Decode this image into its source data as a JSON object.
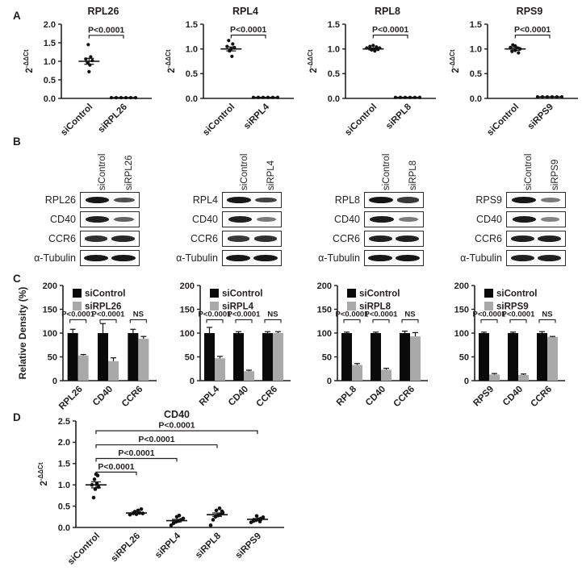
{
  "panels": {
    "a": "A",
    "b": "B",
    "c": "C",
    "d": "D"
  },
  "colors": {
    "black": "#0a0a0a",
    "gray": "#a9a9a9",
    "text": "#231f20"
  },
  "chart_data": [
    {
      "panel": "A",
      "type": "scatter",
      "title": "RPL26",
      "ylabel_base": "2",
      "ylabel_sup": "-ΔΔCt",
      "ylim": [
        0,
        2.0
      ],
      "yticks": [
        "0.0",
        "0.5",
        "1.0",
        "1.5",
        "2.0"
      ],
      "groups": [
        {
          "label": "siControl",
          "mean": 1.0,
          "sem": 0.08,
          "points": [
            [
              -1,
              1.45
            ],
            [
              2,
              1.12
            ],
            [
              -4,
              1.06
            ],
            [
              4,
              1.02
            ],
            [
              -2,
              0.97
            ],
            [
              1,
              0.9
            ],
            [
              0,
              0.72
            ]
          ]
        },
        {
          "label": "siRPL26",
          "mean": 0.02,
          "sem": 0,
          "points": [
            [
              -15,
              0.02
            ],
            [
              -9,
              0.02
            ],
            [
              -3,
              0.02
            ],
            [
              3,
              0.02
            ],
            [
              9,
              0.02
            ],
            [
              15,
              0.02
            ]
          ]
        }
      ],
      "brackets": [
        {
          "from": 0,
          "to": 1,
          "y": 1.7,
          "label": "P<0.0001"
        }
      ]
    },
    {
      "panel": "A",
      "type": "scatter",
      "title": "RPL4",
      "ylabel_base": "2",
      "ylabel_sup": "-ΔΔCt",
      "ylim": [
        0,
        1.5
      ],
      "yticks": [
        "0.0",
        "0.5",
        "1.0",
        "1.5"
      ],
      "groups": [
        {
          "label": "siControl",
          "mean": 1.0,
          "sem": 0.04,
          "points": [
            [
              -3,
              1.17
            ],
            [
              2,
              1.1
            ],
            [
              -5,
              1.05
            ],
            [
              4,
              1.03
            ],
            [
              0,
              1.0
            ],
            [
              -2,
              0.96
            ],
            [
              1,
              0.85
            ]
          ]
        },
        {
          "label": "siRPL4",
          "mean": 0.02,
          "sem": 0,
          "points": [
            [
              -15,
              0.02
            ],
            [
              -9,
              0.02
            ],
            [
              -3,
              0.02
            ],
            [
              3,
              0.02
            ],
            [
              9,
              0.02
            ],
            [
              15,
              0.02
            ]
          ]
        }
      ],
      "brackets": [
        {
          "from": 0,
          "to": 1,
          "y": 1.28,
          "label": "P<0.0001"
        }
      ]
    },
    {
      "panel": "A",
      "type": "scatter",
      "title": "RPL8",
      "ylabel_base": "2",
      "ylabel_sup": "-ΔΔCt",
      "ylim": [
        0,
        1.5
      ],
      "yticks": [
        "0.0",
        "0.5",
        "1.0",
        "1.5"
      ],
      "groups": [
        {
          "label": "siControl",
          "mean": 1.0,
          "sem": 0.02,
          "points": [
            [
              -8,
              1.02
            ],
            [
              -4,
              1.05
            ],
            [
              0,
              1.07
            ],
            [
              4,
              1.04
            ],
            [
              8,
              1.02
            ],
            [
              -2,
              0.98
            ],
            [
              2,
              0.96
            ],
            [
              6,
              0.99
            ]
          ]
        },
        {
          "label": "siRPL8",
          "mean": 0.02,
          "sem": 0,
          "points": [
            [
              -15,
              0.02
            ],
            [
              -9,
              0.02
            ],
            [
              -3,
              0.02
            ],
            [
              3,
              0.02
            ],
            [
              9,
              0.02
            ],
            [
              15,
              0.02
            ]
          ]
        }
      ],
      "brackets": [
        {
          "from": 0,
          "to": 1,
          "y": 1.28,
          "label": "P<0.0001"
        }
      ]
    },
    {
      "panel": "A",
      "type": "scatter",
      "title": "RPS9",
      "ylabel_base": "2",
      "ylabel_sup": "-ΔΔCt",
      "ylim": [
        0,
        1.5
      ],
      "yticks": [
        "0.0",
        "0.5",
        "1.0",
        "1.5"
      ],
      "groups": [
        {
          "label": "siControl",
          "mean": 1.0,
          "sem": 0.03,
          "points": [
            [
              -6,
              1.03
            ],
            [
              -3,
              1.08
            ],
            [
              0,
              1.06
            ],
            [
              3,
              1.02
            ],
            [
              6,
              1.0
            ],
            [
              -4,
              0.95
            ],
            [
              0,
              0.97
            ],
            [
              4,
              0.92
            ]
          ]
        },
        {
          "label": "siRPS9",
          "mean": 0.03,
          "sem": 0,
          "points": [
            [
              -15,
              0.03
            ],
            [
              -9,
              0.03
            ],
            [
              -3,
              0.03
            ],
            [
              3,
              0.03
            ],
            [
              9,
              0.03
            ],
            [
              15,
              0.03
            ]
          ]
        }
      ],
      "brackets": [
        {
          "from": 0,
          "to": 1,
          "y": 1.28,
          "label": "P<0.0001"
        }
      ]
    },
    {
      "panel": "C",
      "type": "bar",
      "ylabel": "Relative Density (%)",
      "ylim": [
        0,
        200
      ],
      "yticks": [
        0,
        50,
        100,
        150,
        200
      ],
      "categories": [
        "RPL26",
        "CD40",
        "CCR6"
      ],
      "series": [
        {
          "name": "siControl",
          "color": "#0a0a0a",
          "values": [
            100,
            100,
            100
          ],
          "errors": [
            8,
            20,
            8
          ]
        },
        {
          "name": "siRPL26",
          "color": "#a9a9a9",
          "values": [
            53,
            41,
            88
          ],
          "errors": [
            2,
            7,
            5
          ]
        }
      ],
      "annotations": [
        "P<0.0001",
        "P<0.0001",
        "NS"
      ]
    },
    {
      "panel": "C",
      "type": "bar",
      "ylabel": "",
      "ylim": [
        0,
        200
      ],
      "yticks": [
        0,
        50,
        100,
        150,
        200
      ],
      "categories": [
        "RPL4",
        "CD40",
        "CCR6"
      ],
      "series": [
        {
          "name": "siControl",
          "color": "#0a0a0a",
          "values": [
            100,
            100,
            100
          ],
          "errors": [
            12,
            3,
            3
          ]
        },
        {
          "name": "siRPL4",
          "color": "#a9a9a9",
          "values": [
            47,
            20,
            100
          ],
          "errors": [
            4,
            2,
            3
          ]
        }
      ],
      "annotations": [
        "P<0.0001",
        "P<0.0001",
        "NS"
      ]
    },
    {
      "panel": "C",
      "type": "bar",
      "ylabel": "",
      "ylim": [
        0,
        200
      ],
      "yticks": [
        0,
        50,
        100,
        150,
        200
      ],
      "categories": [
        "RPL8",
        "CD40",
        "CCR6"
      ],
      "series": [
        {
          "name": "siControl",
          "color": "#0a0a0a",
          "values": [
            100,
            100,
            100
          ],
          "errors": [
            2,
            2,
            4
          ]
        },
        {
          "name": "siRPL8",
          "color": "#a9a9a9",
          "values": [
            33,
            23,
            93
          ],
          "errors": [
            3,
            3,
            8
          ]
        }
      ],
      "annotations": [
        "P<0.0001",
        "P<0.0001",
        "NS"
      ]
    },
    {
      "panel": "C",
      "type": "bar",
      "ylabel": "",
      "ylim": [
        0,
        200
      ],
      "yticks": [
        0,
        50,
        100,
        150,
        200
      ],
      "categories": [
        "RPS9",
        "CD40",
        "CCR6"
      ],
      "series": [
        {
          "name": "siControl",
          "color": "#0a0a0a",
          "values": [
            100,
            100,
            100
          ],
          "errors": [
            2,
            2,
            3
          ]
        },
        {
          "name": "siRPS9",
          "color": "#a9a9a9",
          "values": [
            13,
            12,
            92
          ],
          "errors": [
            2,
            2,
            1
          ]
        }
      ],
      "annotations": [
        "P<0.0001",
        "P<0.0001",
        "NS"
      ]
    },
    {
      "panel": "D",
      "type": "scatter",
      "title": "CD40",
      "ylabel_base": "2",
      "ylabel_sup": "-ΔΔCt",
      "ylim": [
        0,
        2.5
      ],
      "yticks": [
        "0.0",
        "0.5",
        "1.0",
        "1.5",
        "2.0",
        "2.5"
      ],
      "groups": [
        {
          "label": "siControl",
          "mean": 1.0,
          "sem": 0.07,
          "points": [
            [
              -3,
              0.7
            ],
            [
              -1,
              0.9
            ],
            [
              3,
              0.95
            ],
            [
              -5,
              1.0
            ],
            [
              1,
              1.03
            ],
            [
              -2,
              1.13
            ],
            [
              2,
              1.22
            ],
            [
              0,
              1.25
            ]
          ]
        },
        {
          "label": "siRPL26",
          "mean": 0.34,
          "sem": 0.02,
          "points": [
            [
              -8,
              0.3
            ],
            [
              -4,
              0.33
            ],
            [
              0,
              0.31
            ],
            [
              4,
              0.34
            ],
            [
              8,
              0.33
            ],
            [
              -2,
              0.37
            ],
            [
              2,
              0.4
            ],
            [
              6,
              0.43
            ]
          ]
        },
        {
          "label": "siRPL4",
          "mean": 0.16,
          "sem": 0.03,
          "points": [
            [
              -7,
              0.05
            ],
            [
              -4,
              0.1
            ],
            [
              -1,
              0.13
            ],
            [
              2,
              0.15
            ],
            [
              5,
              0.18
            ],
            [
              8,
              0.21
            ],
            [
              0,
              0.25
            ],
            [
              3,
              0.28
            ]
          ]
        },
        {
          "label": "siRPL8",
          "mean": 0.3,
          "sem": 0.04,
          "points": [
            [
              -8,
              0.05
            ],
            [
              -5,
              0.18
            ],
            [
              -2,
              0.25
            ],
            [
              1,
              0.28
            ],
            [
              4,
              0.31
            ],
            [
              7,
              0.35
            ],
            [
              -1,
              0.4
            ],
            [
              3,
              0.45
            ],
            [
              6,
              0.38
            ]
          ]
        },
        {
          "label": "siRPS9",
          "mean": 0.19,
          "sem": 0.02,
          "points": [
            [
              -8,
              0.12
            ],
            [
              -5,
              0.15
            ],
            [
              -2,
              0.17
            ],
            [
              1,
              0.19
            ],
            [
              4,
              0.21
            ],
            [
              7,
              0.24
            ],
            [
              -1,
              0.27
            ],
            [
              3,
              0.14
            ]
          ]
        }
      ],
      "brackets": [
        {
          "from": 0,
          "to": 1,
          "y": 1.3,
          "label": "P<0.0001"
        },
        {
          "from": 0,
          "to": 2,
          "y": 1.62,
          "label": "P<0.0001"
        },
        {
          "from": 0,
          "to": 3,
          "y": 1.94,
          "label": "P<0.0001"
        },
        {
          "from": 0,
          "to": 4,
          "y": 2.27,
          "label": "P<0.0001"
        }
      ]
    }
  ],
  "western_blots": [
    {
      "lane_labels": [
        "siControl",
        "siRPL26"
      ],
      "rows": [
        {
          "label": "RPL26",
          "bands": [
            0.95,
            0.6
          ]
        },
        {
          "label": "CD40",
          "bands": [
            0.9,
            0.5
          ]
        },
        {
          "label": "CCR6",
          "bands": [
            0.8,
            0.85
          ]
        },
        {
          "label": "α-Tubulin",
          "bands": [
            0.95,
            0.95
          ]
        }
      ]
    },
    {
      "lane_labels": [
        "siControl",
        "siRPL4"
      ],
      "rows": [
        {
          "label": "RPL4",
          "bands": [
            0.95,
            0.7
          ]
        },
        {
          "label": "CD40",
          "bands": [
            0.9,
            0.35
          ]
        },
        {
          "label": "CCR6",
          "bands": [
            0.75,
            0.8
          ]
        },
        {
          "label": "α-Tubulin",
          "bands": [
            0.95,
            0.95
          ]
        }
      ]
    },
    {
      "lane_labels": [
        "siControl",
        "siRPL8"
      ],
      "rows": [
        {
          "label": "RPL8",
          "bands": [
            0.97,
            0.75
          ]
        },
        {
          "label": "CD40",
          "bands": [
            0.92,
            0.35
          ]
        },
        {
          "label": "CCR6",
          "bands": [
            0.9,
            0.9
          ]
        },
        {
          "label": "α-Tubulin",
          "bands": [
            0.95,
            0.95
          ]
        }
      ]
    },
    {
      "lane_labels": [
        "siControl",
        "siRPS9"
      ],
      "rows": [
        {
          "label": "RPS9",
          "bands": [
            0.95,
            0.35
          ]
        },
        {
          "label": "CD40",
          "bands": [
            0.92,
            0.3
          ]
        },
        {
          "label": "CCR6",
          "bands": [
            0.9,
            0.9
          ]
        },
        {
          "label": "α-Tubulin",
          "bands": [
            0.9,
            0.9
          ]
        }
      ]
    }
  ]
}
